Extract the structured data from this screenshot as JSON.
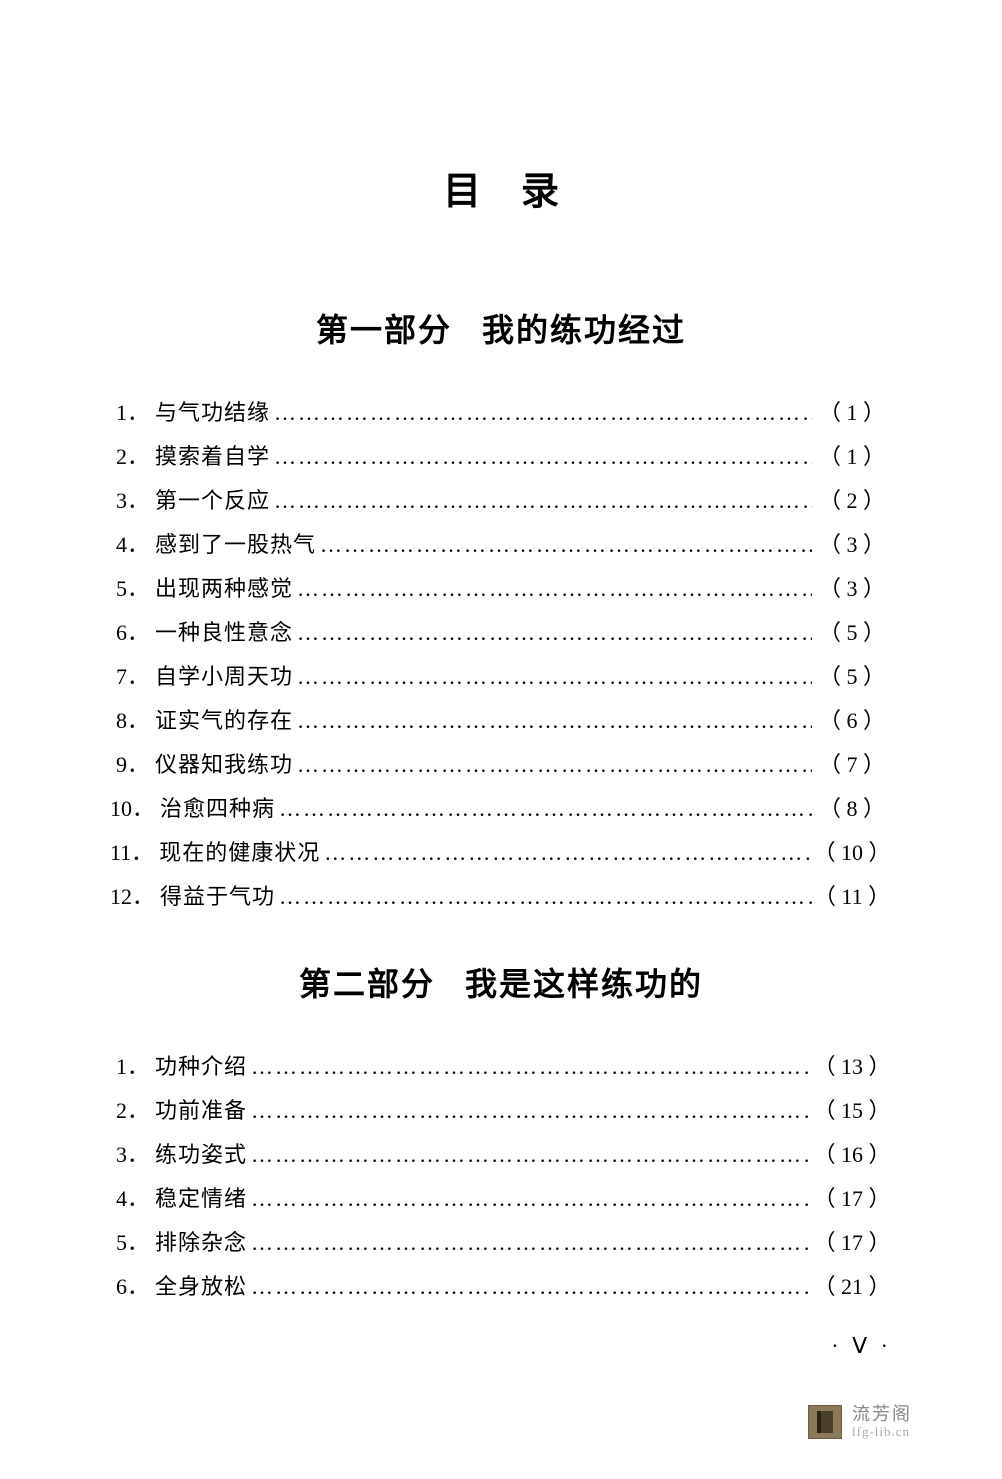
{
  "page": {
    "title": "目录",
    "page_marker": "· Ⅴ ·",
    "text_color": "#000000",
    "background_color": "#ffffff",
    "body_font_size": 22,
    "title_font_size": 38,
    "section_title_font_size": 32,
    "line_height": 2.0
  },
  "sections": [
    {
      "heading_part1": "第一部分",
      "heading_part2": "我的练功经过",
      "entries": [
        {
          "num": "1．",
          "label": "与气功结缘",
          "page": "（ 1 ）"
        },
        {
          "num": "2．",
          "label": "摸索着自学",
          "page": "（ 1 ）"
        },
        {
          "num": "3．",
          "label": "第一个反应",
          "page": "（ 2 ）"
        },
        {
          "num": "4．",
          "label": "感到了一股热气",
          "page": "（ 3 ）"
        },
        {
          "num": "5．",
          "label": "出现两种感觉",
          "page": "（ 3 ）"
        },
        {
          "num": "6．",
          "label": "一种良性意念",
          "page": "（ 5 ）"
        },
        {
          "num": "7．",
          "label": "自学小周天功",
          "page": "（ 5 ）"
        },
        {
          "num": "8．",
          "label": "证实气的存在",
          "page": "（ 6 ）"
        },
        {
          "num": "9．",
          "label": "仪器知我练功",
          "page": "（ 7 ）"
        },
        {
          "num": "10．",
          "label": "治愈四种病",
          "page": "（ 8 ）"
        },
        {
          "num": "11．",
          "label": "现在的健康状况",
          "page": "（ 10 ）"
        },
        {
          "num": "12．",
          "label": "得益于气功",
          "page": "（ 11 ）"
        }
      ]
    },
    {
      "heading_part1": "第二部分",
      "heading_part2": "我是这样练功的",
      "entries": [
        {
          "num": "1．",
          "label": "功种介绍",
          "page": "（ 13 ）"
        },
        {
          "num": "2．",
          "label": "功前准备",
          "page": "（ 15 ）"
        },
        {
          "num": "3．",
          "label": "练功姿式",
          "page": "（ 16 ）"
        },
        {
          "num": "4．",
          "label": "稳定情绪",
          "page": "（ 17 ）"
        },
        {
          "num": "5．",
          "label": "排除杂念",
          "page": "（ 17 ）"
        },
        {
          "num": "6．",
          "label": "全身放松",
          "page": "（ 21 ）"
        }
      ]
    }
  ],
  "watermark": {
    "name": "流芳阁",
    "url": "lfg-lib.cn",
    "icon_bg": "#8a7a5a",
    "icon_inner": "#4a3f2a",
    "name_color": "#888888",
    "url_color": "#aaaaaa"
  }
}
